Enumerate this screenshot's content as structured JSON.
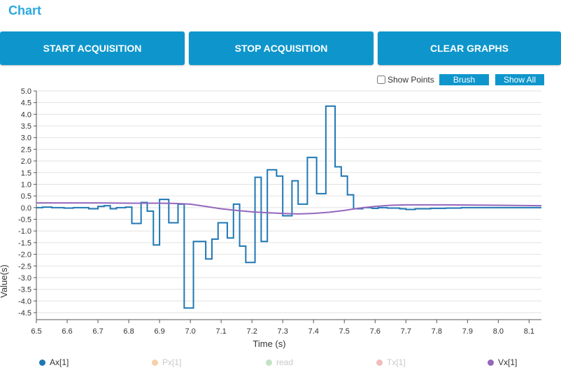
{
  "page": {
    "title": "Chart"
  },
  "buttons": {
    "start": "START ACQUISITION",
    "stop": "STOP ACQUISITION",
    "clear": "CLEAR GRAPHS"
  },
  "toolbar": {
    "show_points": "Show Points",
    "brush": "Brush",
    "show_all": "Show All"
  },
  "colors": {
    "accent": "#0e96cc",
    "title": "#2aa8e0",
    "ax": "#1f77b4",
    "vx": "#9467bd"
  },
  "legend": [
    {
      "label": "Ax[1]",
      "color": "#1f77b4",
      "active": true
    },
    {
      "label": "Px[1]",
      "color": "#f7cfa9",
      "active": false
    },
    {
      "label": "read",
      "color": "#c4e3c4",
      "active": false
    },
    {
      "label": "Tx[1]",
      "color": "#f2bcbc",
      "active": false
    },
    {
      "label": "Vx[1]",
      "color": "#9467bd",
      "active": true
    }
  ],
  "chart_data": {
    "type": "line",
    "xlabel": "Time (s)",
    "ylabel": "Value(s)",
    "xlim": [
      6.5,
      8.14
    ],
    "ylim": [
      -4.8,
      5.0
    ],
    "xticks": [
      "6.5",
      "6.6",
      "6.7",
      "6.8",
      "6.9",
      "7.0",
      "7.1",
      "7.2",
      "7.3",
      "7.4",
      "7.5",
      "7.6",
      "7.7",
      "7.8",
      "7.9",
      "8.0",
      "8.1"
    ],
    "yticks": [
      "5.0",
      "4.5",
      "4.0",
      "3.5",
      "3.0",
      "2.5",
      "2.0",
      "1.5",
      "1.0",
      "0.5",
      "0.0",
      "-0.5",
      "-1.0",
      "-1.5",
      "-2.0",
      "-2.5",
      "-3.0",
      "-3.5",
      "-4.0",
      "-4.5"
    ],
    "grid": "horizontal",
    "series": [
      {
        "name": "Ax[1]",
        "step": true,
        "x": [
          6.5,
          6.52,
          6.55,
          6.59,
          6.62,
          6.67,
          6.7,
          6.72,
          6.74,
          6.76,
          6.79,
          6.81,
          6.84,
          6.86,
          6.88,
          6.9,
          6.93,
          6.96,
          6.98,
          7.01,
          7.04,
          7.05,
          7.07,
          7.09,
          7.12,
          7.14,
          7.16,
          7.18,
          7.21,
          7.23,
          7.25,
          7.28,
          7.3,
          7.33,
          7.35,
          7.38,
          7.41,
          7.44,
          7.47,
          7.49,
          7.51,
          7.53,
          7.56,
          7.59,
          7.61,
          7.64,
          7.68,
          7.7,
          7.73,
          7.78,
          7.83,
          7.88,
          7.92,
          7.96,
          8.01,
          8.05,
          8.14
        ],
        "y": [
          0.0,
          0.02,
          0.0,
          -0.02,
          0.0,
          -0.05,
          0.05,
          0.08,
          -0.05,
          0.0,
          0.02,
          -0.68,
          0.22,
          -0.15,
          -1.6,
          0.35,
          -0.65,
          0.15,
          -4.3,
          -1.45,
          -1.45,
          -2.2,
          -1.35,
          -0.65,
          -1.3,
          0.15,
          -1.65,
          -2.35,
          1.3,
          -1.45,
          1.62,
          1.35,
          -0.35,
          1.15,
          0.15,
          2.15,
          0.6,
          4.35,
          1.75,
          1.35,
          0.55,
          -0.05,
          0.0,
          -0.03,
          0.0,
          -0.02,
          -0.05,
          -0.08,
          -0.05,
          -0.03,
          -0.02,
          0.0,
          0.0,
          0.0,
          0.0,
          0.0,
          0.0
        ]
      },
      {
        "name": "Vx[1]",
        "step": false,
        "x": [
          6.5,
          6.6,
          6.7,
          6.8,
          6.9,
          6.95,
          7.0,
          7.05,
          7.1,
          7.15,
          7.2,
          7.25,
          7.3,
          7.35,
          7.4,
          7.45,
          7.5,
          7.55,
          7.6,
          7.65,
          7.7,
          7.8,
          7.9,
          8.0,
          8.14
        ],
        "y": [
          0.2,
          0.2,
          0.2,
          0.19,
          0.19,
          0.18,
          0.15,
          0.05,
          -0.05,
          -0.12,
          -0.18,
          -0.22,
          -0.25,
          -0.27,
          -0.25,
          -0.2,
          -0.12,
          -0.02,
          0.05,
          0.1,
          0.12,
          0.12,
          0.11,
          0.1,
          0.08
        ]
      }
    ]
  }
}
